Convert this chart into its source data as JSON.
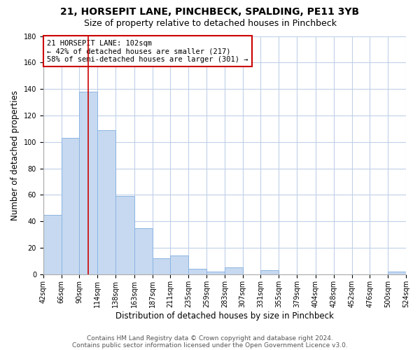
{
  "title": "21, HORSEPIT LANE, PINCHBECK, SPALDING, PE11 3YB",
  "subtitle": "Size of property relative to detached houses in Pinchbeck",
  "xlabel": "Distribution of detached houses by size in Pinchbeck",
  "ylabel": "Number of detached properties",
  "footer_line1": "Contains HM Land Registry data © Crown copyright and database right 2024.",
  "footer_line2": "Contains public sector information licensed under the Open Government Licence v3.0.",
  "bin_edges": [
    42,
    66,
    90,
    114,
    138,
    163,
    187,
    211,
    235,
    259,
    283,
    307,
    331,
    355,
    379,
    404,
    428,
    452,
    476,
    500,
    524
  ],
  "bin_labels": [
    "42sqm",
    "66sqm",
    "90sqm",
    "114sqm",
    "138sqm",
    "163sqm",
    "187sqm",
    "211sqm",
    "235sqm",
    "259sqm",
    "283sqm",
    "307sqm",
    "331sqm",
    "355sqm",
    "379sqm",
    "404sqm",
    "428sqm",
    "452sqm",
    "476sqm",
    "500sqm",
    "524sqm"
  ],
  "counts": [
    45,
    103,
    138,
    109,
    59,
    35,
    12,
    14,
    4,
    2,
    5,
    0,
    3,
    0,
    0,
    0,
    0,
    0,
    0,
    2
  ],
  "bar_color": "#c6d9f0",
  "bar_edge_color": "#8db4e2",
  "property_line_x": 102,
  "property_line_color": "#cc0000",
  "annotation_text": "21 HORSEPIT LANE: 102sqm\n← 42% of detached houses are smaller (217)\n58% of semi-detached houses are larger (301) →",
  "annotation_box_color": "#ffffff",
  "annotation_box_edge_color": "#cc0000",
  "ylim": [
    0,
    180
  ],
  "yticks": [
    0,
    20,
    40,
    60,
    80,
    100,
    120,
    140,
    160,
    180
  ],
  "bg_color": "#ffffff",
  "grid_color": "#c0d0e8",
  "title_fontsize": 10,
  "subtitle_fontsize": 9,
  "axis_label_fontsize": 8.5,
  "tick_fontsize": 7,
  "annotation_fontsize": 7.5,
  "footer_fontsize": 6.5
}
